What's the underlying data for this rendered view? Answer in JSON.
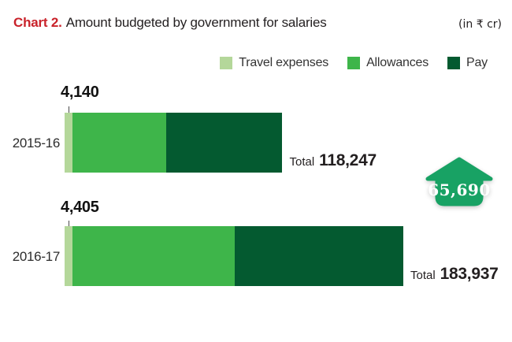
{
  "header": {
    "chart_label": "Chart 2.",
    "title": "Amount budgeted by government for salaries",
    "unit": "(in ₹ cr)",
    "accent_color": "#c9222a"
  },
  "chart_data": {
    "type": "bar",
    "orientation": "horizontal",
    "stacked": true,
    "unit": "₹ cr",
    "title": "Amount budgeted by government for salaries",
    "categories": [
      "2015-16",
      "2016-17"
    ],
    "series": [
      {
        "name": "Travel expenses",
        "color": "#b4d79a",
        "values": [
          4140,
          4405
        ]
      },
      {
        "name": "Allowances",
        "color": "#3eb54a",
        "values": [
          50900,
          88000
        ],
        "estimated": true
      },
      {
        "name": "Pay",
        "color": "#045a30",
        "values": [
          63207,
          91532
        ],
        "estimated": true
      }
    ],
    "totals": [
      118247,
      183937
    ],
    "xlim": [
      0,
      183937
    ],
    "legend_position": "top-right",
    "grid": false,
    "annotations": {
      "travel_value_labels": [
        "4,140",
        "4,405"
      ],
      "total_prefix": "Total",
      "total_value_labels": [
        "118,247",
        "183,937"
      ],
      "increase_arrow": {
        "label": "65,690",
        "color": "#18a264"
      }
    }
  }
}
